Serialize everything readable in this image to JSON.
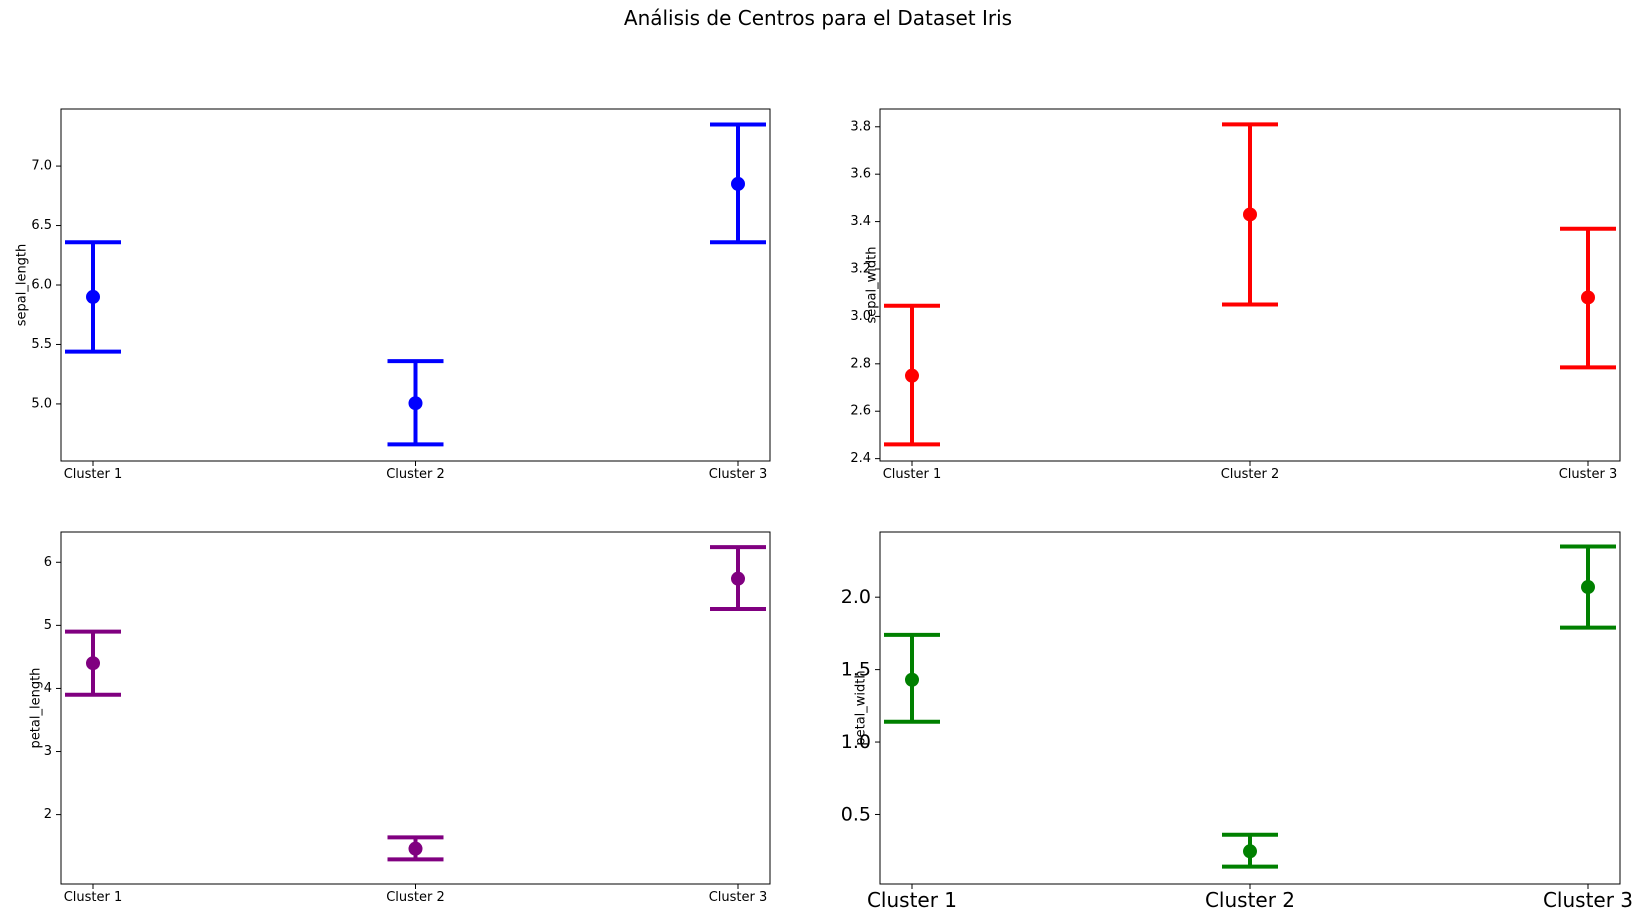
{
  "figure": {
    "title": "Análisis de Centros para el Dataset Iris"
  },
  "chart_data": [
    {
      "type": "errorbar",
      "categories": [
        "Cluster 1",
        "Cluster 2",
        "Cluster 3"
      ],
      "ylabel": "sepal_length",
      "xlabel": "",
      "color": "#0000ff",
      "ylim": [
        4.52,
        7.48
      ],
      "yticks": [
        "5.0",
        "5.5",
        "6.0",
        "6.5",
        "7.0"
      ],
      "ytick_values": [
        5.0,
        5.5,
        6.0,
        6.5,
        7.0
      ],
      "series": [
        {
          "values": [
            5.9,
            5.006,
            6.85
          ],
          "lower": [
            5.44,
            4.66,
            6.36
          ],
          "upper": [
            6.36,
            5.36,
            7.35
          ]
        }
      ],
      "grid": false
    },
    {
      "type": "errorbar",
      "categories": [
        "Cluster 1",
        "Cluster 2",
        "Cluster 3"
      ],
      "ylabel": "sepal_width",
      "xlabel": "",
      "color": "#ff0000",
      "ylim": [
        2.39,
        3.875
      ],
      "yticks": [
        "2.4",
        "2.6",
        "2.8",
        "3.0",
        "3.2",
        "3.4",
        "3.6",
        "3.8"
      ],
      "ytick_values": [
        2.4,
        2.6,
        2.8,
        3.0,
        3.2,
        3.4,
        3.6,
        3.8
      ],
      "series": [
        {
          "values": [
            2.75,
            3.43,
            3.08
          ],
          "lower": [
            2.46,
            3.05,
            2.785
          ],
          "upper": [
            3.045,
            3.81,
            3.37
          ]
        }
      ],
      "grid": false
    },
    {
      "type": "errorbar",
      "categories": [
        "Cluster 1",
        "Cluster 2",
        "Cluster 3"
      ],
      "ylabel": "petal_length",
      "xlabel": "",
      "color": "#800080",
      "ylim": [
        0.9,
        6.48
      ],
      "yticks": [
        "2",
        "3",
        "4",
        "5",
        "6"
      ],
      "ytick_values": [
        2,
        3,
        4,
        5,
        6
      ],
      "series": [
        {
          "values": [
            4.4,
            1.46,
            5.74
          ],
          "lower": [
            3.9,
            1.29,
            5.26
          ],
          "upper": [
            4.9,
            1.64,
            6.24
          ]
        }
      ],
      "grid": false
    },
    {
      "type": "errorbar",
      "categories": [
        "Cluster 1",
        "Cluster 2",
        "Cluster 3"
      ],
      "ylabel": "petal_width",
      "xlabel": "",
      "color": "#008000",
      "ylim": [
        0.02,
        2.45
      ],
      "yticks": [
        "0.5",
        "1.0",
        "1.5",
        "2.0"
      ],
      "ytick_values": [
        0.5,
        1.0,
        1.5,
        2.0
      ],
      "series": [
        {
          "values": [
            1.43,
            0.246,
            2.07
          ],
          "lower": [
            1.14,
            0.14,
            1.79
          ],
          "upper": [
            1.74,
            0.36,
            2.35
          ]
        }
      ],
      "grid": false
    }
  ]
}
